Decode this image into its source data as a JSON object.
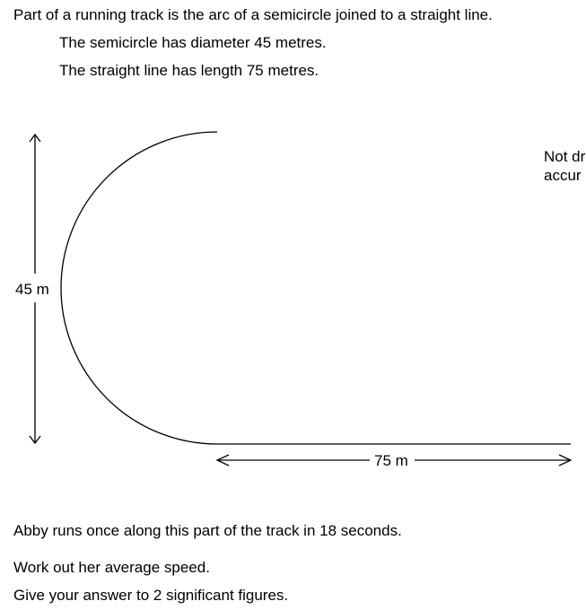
{
  "question": {
    "intro": "Part of a running track is the arc of a semicircle joined to a straight line.",
    "diameter_line": "The semicircle has diameter 45 metres.",
    "length_line": "The straight line has length 75 metres.",
    "runs_line": "Abby runs once along this part of the track in 18 seconds.",
    "work_line": "Work out her average speed.",
    "sig_line": "Give your answer to 2 significant figures."
  },
  "diagram": {
    "diameter_label": "45 m",
    "straight_label": "75 m",
    "note_line1": "Not dr",
    "note_line2": "accur"
  }
}
